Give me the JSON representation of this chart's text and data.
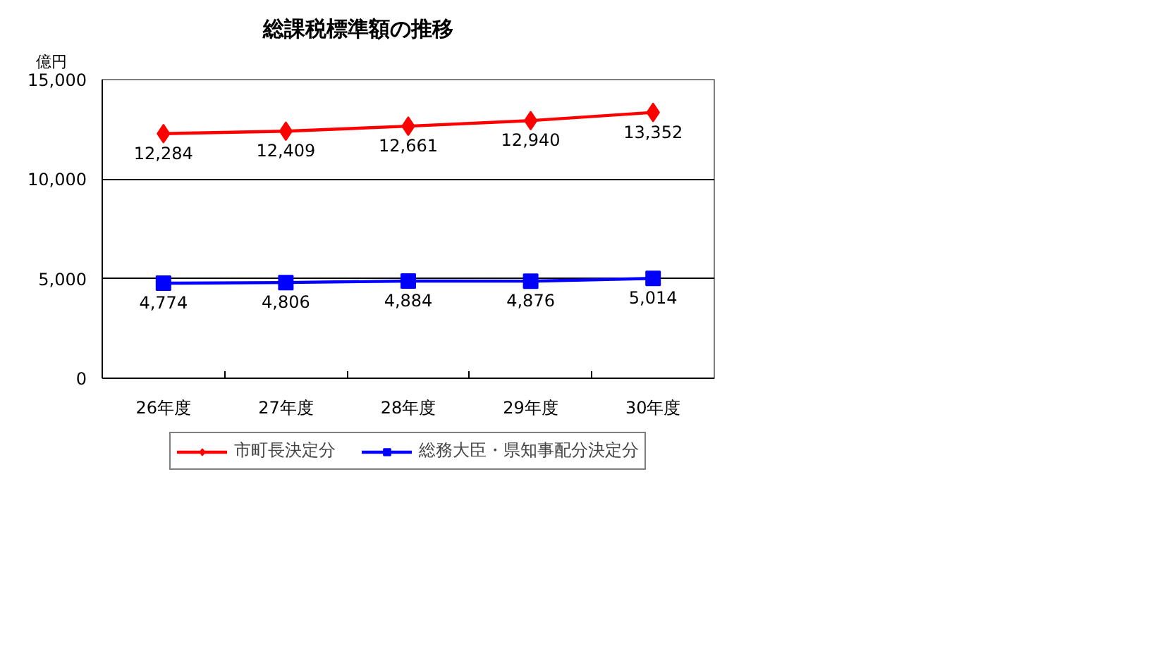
{
  "chart_data": {
    "type": "line",
    "title": "総課税標準額の推移",
    "ylabel": "億円",
    "categories": [
      "26年度",
      "27年度",
      "28年度",
      "29年度",
      "30年度"
    ],
    "series": [
      {
        "name": "市町長決定分",
        "color": "#ff0000",
        "marker": "diamond",
        "values": [
          12284,
          12409,
          12661,
          12940,
          13352
        ],
        "value_labels": [
          "12,284",
          "12,409",
          "12,661",
          "12,940",
          "13,352"
        ]
      },
      {
        "name": "総務大臣・県知事配分決定分",
        "color": "#0000ff",
        "marker": "square",
        "values": [
          4774,
          4806,
          4884,
          4876,
          5014
        ],
        "value_labels": [
          "4,774",
          "4,806",
          "4,884",
          "4,876",
          "5,014"
        ]
      }
    ],
    "ylim": [
      0,
      15000
    ],
    "yticks": [
      0,
      {
        "value": 5000,
        "label": "5,000"
      },
      {
        "value": 10000,
        "label": "10,000"
      },
      {
        "value": 15000,
        "label": "15,000"
      }
    ],
    "grid": "y",
    "legend": "bottom",
    "line_style": "solid"
  }
}
